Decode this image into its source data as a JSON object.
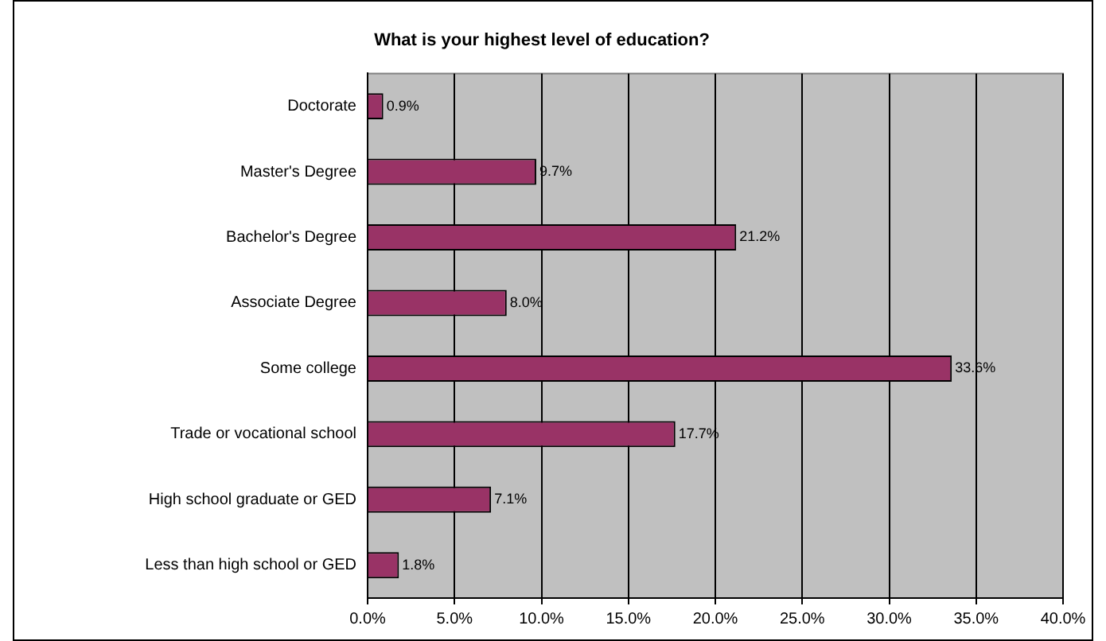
{
  "chart_data": {
    "type": "bar",
    "orientation": "horizontal",
    "title": "What is your highest level of education?",
    "categories": [
      "Doctorate",
      "Master's Degree",
      "Bachelor's Degree",
      "Associate Degree",
      "Some college",
      "Trade or vocational school",
      "High school graduate or GED",
      "Less than high school or GED"
    ],
    "values": [
      0.9,
      9.7,
      21.2,
      8.0,
      33.6,
      17.7,
      7.1,
      1.8
    ],
    "value_labels": [
      "0.9%",
      "9.7%",
      "21.2%",
      "8.0%",
      "33.6%",
      "17.7%",
      "7.1%",
      "1.8%"
    ],
    "color": "#993366",
    "xlim": [
      0,
      40
    ],
    "xticks": [
      {
        "value": 0,
        "label": "0.0%"
      },
      {
        "value": 5,
        "label": "5.0%"
      },
      {
        "value": 10,
        "label": "10.0%"
      },
      {
        "value": 15,
        "label": "15.0%"
      },
      {
        "value": 20,
        "label": "20.0%"
      },
      {
        "value": 25,
        "label": "25.0%"
      },
      {
        "value": 30,
        "label": "30.0%"
      },
      {
        "value": 35,
        "label": "35.0%"
      },
      {
        "value": 40,
        "label": "40.0%"
      }
    ],
    "grid": "x",
    "legend": false
  }
}
